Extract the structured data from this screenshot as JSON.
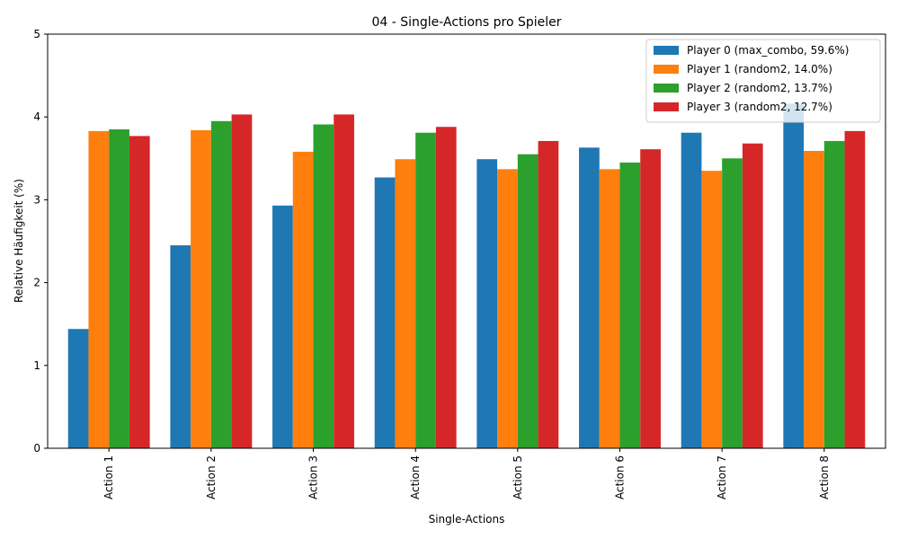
{
  "chart_data": {
    "type": "bar",
    "title": "04 - Single-Actions pro Spieler",
    "xlabel": "Single-Actions",
    "ylabel": "Relative Häufigkeit (%)",
    "ylim": [
      0,
      5
    ],
    "yticks": [
      "0",
      "1",
      "2",
      "3",
      "4",
      "5"
    ],
    "grid": false,
    "legend_position": "top-right",
    "categories": [
      "Action 1",
      "Action 2",
      "Action 3",
      "Action 4",
      "Action 5",
      "Action 6",
      "Action 7",
      "Action 8"
    ],
    "series": [
      {
        "name": "Player 0 (max_combo, 59.6%)",
        "color": "#1f77b4",
        "values": [
          1.44,
          2.45,
          2.93,
          3.27,
          3.49,
          3.63,
          3.81,
          4.16
        ]
      },
      {
        "name": "Player 1 (random2, 14.0%)",
        "color": "#ff7f0e",
        "values": [
          3.83,
          3.84,
          3.58,
          3.49,
          3.37,
          3.37,
          3.35,
          3.59
        ]
      },
      {
        "name": "Player 2 (random2, 13.7%)",
        "color": "#2ca02c",
        "values": [
          3.85,
          3.95,
          3.91,
          3.81,
          3.55,
          3.45,
          3.5,
          3.71
        ]
      },
      {
        "name": "Player 3 (random2, 12.7%)",
        "color": "#d62728",
        "values": [
          3.77,
          4.03,
          4.03,
          3.88,
          3.71,
          3.61,
          3.68,
          3.83
        ]
      }
    ]
  }
}
